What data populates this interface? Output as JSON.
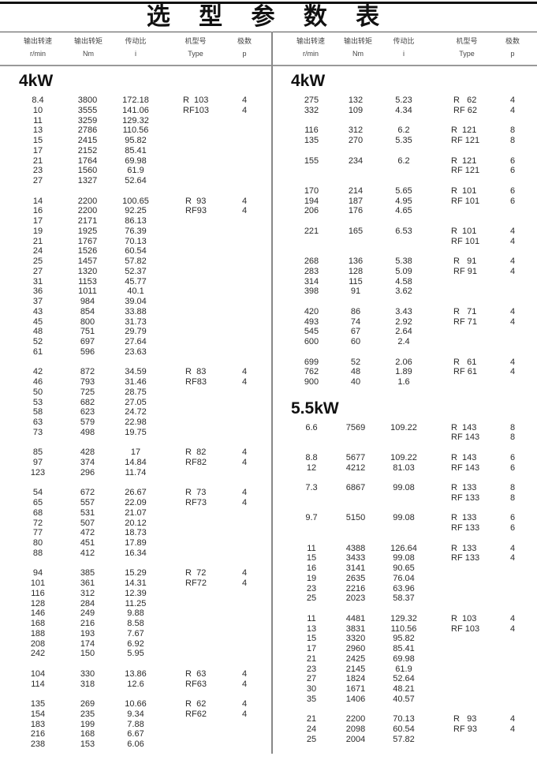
{
  "title": "选 型 参 数 表",
  "headers": [
    {
      "cn": "输出转速",
      "unit": "r/min"
    },
    {
      "cn": "输出转矩",
      "unit": "Nm"
    },
    {
      "cn": "传动比",
      "unit": "i"
    },
    {
      "cn": "机型号",
      "unit": "Type"
    },
    {
      "cn": "极数",
      "unit": "p"
    }
  ],
  "columns": [
    {
      "sections": [
        {
          "power": "4kW",
          "groups": [
            [
              [
                "8.4",
                "3800",
                "172.18",
                "R  103",
                "4"
              ],
              [
                "10",
                "3555",
                "141.06",
                "RF103",
                "4"
              ],
              [
                "11",
                "3259",
                "129.32",
                "",
                ""
              ],
              [
                "13",
                "2786",
                "110.56",
                "",
                ""
              ],
              [
                "15",
                "2415",
                "95.82",
                "",
                ""
              ],
              [
                "17",
                "2152",
                "85.41",
                "",
                ""
              ],
              [
                "21",
                "1764",
                "69.98",
                "",
                ""
              ],
              [
                "23",
                "1560",
                "61.9",
                "",
                ""
              ],
              [
                "27",
                "1327",
                "52.64",
                "",
                ""
              ]
            ],
            [
              [
                "14",
                "2200",
                "100.65",
                " R  93",
                "4"
              ],
              [
                "16",
                "2200",
                "92.25",
                " RF93",
                "4"
              ],
              [
                "17",
                "2171",
                "86.13",
                "",
                ""
              ],
              [
                "19",
                "1925",
                "76.39",
                "",
                ""
              ],
              [
                "21",
                "1767",
                "70.13",
                "",
                ""
              ],
              [
                "24",
                "1526",
                "60.54",
                "",
                ""
              ],
              [
                "25",
                "1457",
                "57.82",
                "",
                ""
              ],
              [
                "27",
                "1320",
                "52.37",
                "",
                ""
              ],
              [
                "31",
                "1153",
                "45.77",
                "",
                ""
              ],
              [
                "36",
                "1011",
                "40.1",
                "",
                ""
              ],
              [
                "37",
                "984",
                "39.04",
                "",
                ""
              ],
              [
                "43",
                "854",
                "33.88",
                "",
                ""
              ],
              [
                "45",
                "800",
                "31.73",
                "",
                ""
              ],
              [
                "48",
                "751",
                "29.79",
                "",
                ""
              ],
              [
                "52",
                "697",
                "27.64",
                "",
                ""
              ],
              [
                "61",
                "596",
                "23.63",
                "",
                ""
              ]
            ],
            [
              [
                "42",
                "872",
                "34.59",
                " R  83",
                "4"
              ],
              [
                "46",
                "793",
                "31.46",
                " RF83",
                "4"
              ],
              [
                "50",
                "725",
                "28.75",
                "",
                ""
              ],
              [
                "53",
                "682",
                "27.05",
                "",
                ""
              ],
              [
                "58",
                "623",
                "24.72",
                "",
                ""
              ],
              [
                "63",
                "579",
                "22.98",
                "",
                ""
              ],
              [
                "73",
                "498",
                "19.75",
                "",
                ""
              ]
            ],
            [
              [
                "85",
                "428",
                "17",
                " R  82",
                "4"
              ],
              [
                "97",
                "374",
                "14.84",
                " RF82",
                "4"
              ],
              [
                "123",
                "296",
                "11.74",
                "",
                ""
              ]
            ],
            [
              [
                "54",
                "672",
                "26.67",
                " R  73",
                "4"
              ],
              [
                "65",
                "557",
                "22.09",
                " RF73",
                "4"
              ],
              [
                "68",
                "531",
                "21.07",
                "",
                ""
              ],
              [
                "72",
                "507",
                "20.12",
                "",
                ""
              ],
              [
                "77",
                "472",
                "18.73",
                "",
                ""
              ],
              [
                "80",
                "451",
                "17.89",
                "",
                ""
              ],
              [
                "88",
                "412",
                "16.34",
                "",
                ""
              ]
            ],
            [
              [
                "94",
                "385",
                "15.29",
                " R  72",
                "4"
              ],
              [
                "101",
                "361",
                "14.31",
                " RF72",
                "4"
              ],
              [
                "116",
                "312",
                "12.39",
                "",
                ""
              ],
              [
                "128",
                "284",
                "11.25",
                "",
                ""
              ],
              [
                "146",
                "249",
                "9.88",
                "",
                ""
              ],
              [
                "168",
                "216",
                "8.58",
                "",
                ""
              ],
              [
                "188",
                "193",
                "7.67",
                "",
                ""
              ],
              [
                "208",
                "174",
                "6.92",
                "",
                ""
              ],
              [
                "242",
                "150",
                "5.95",
                "",
                ""
              ]
            ],
            [
              [
                "104",
                "330",
                "13.86",
                " R  63",
                "4"
              ],
              [
                "114",
                "318",
                "12.6",
                " RF63",
                "4"
              ]
            ],
            [
              [
                "135",
                "269",
                "10.66",
                " R  62",
                "4"
              ],
              [
                "154",
                "235",
                "9.34",
                " RF62",
                "4"
              ],
              [
                "183",
                "199",
                "7.88",
                "",
                ""
              ],
              [
                "216",
                "168",
                "6.67",
                "",
                ""
              ],
              [
                "238",
                "153",
                "6.06",
                "",
                ""
              ]
            ]
          ]
        }
      ]
    },
    {
      "sections": [
        {
          "power": "4kW",
          "groups": [
            [
              [
                "275",
                "132",
                "5.23",
                " R   62",
                "4"
              ],
              [
                "332",
                "109",
                "4.34",
                " RF 62",
                "4"
              ]
            ],
            [
              [
                "116",
                "312",
                "6.2",
                "R  121",
                "8"
              ],
              [
                "135",
                "270",
                "5.35",
                "RF 121",
                "8"
              ]
            ],
            [
              [
                "155",
                "234",
                "6.2",
                "R  121",
                "6"
              ],
              [
                "",
                "",
                "",
                "RF 121",
                "6"
              ]
            ],
            [
              [
                "170",
                "214",
                "5.65",
                "R  101",
                "6"
              ],
              [
                "194",
                "187",
                "4.95",
                "RF 101",
                "6"
              ],
              [
                "206",
                "176",
                "4.65",
                "",
                ""
              ]
            ],
            [
              [
                "221",
                "165",
                "6.53",
                "R  101",
                "4"
              ],
              [
                "",
                "",
                "",
                "RF 101",
                "4"
              ]
            ],
            [
              [
                "268",
                "136",
                "5.38",
                " R   91",
                "4"
              ],
              [
                "283",
                "128",
                "5.09",
                " RF 91",
                "4"
              ],
              [
                "314",
                "115",
                "4.58",
                "",
                ""
              ],
              [
                "398",
                "91",
                "3.62",
                "",
                ""
              ]
            ],
            [
              [
                "420",
                "86",
                "3.43",
                " R   71",
                "4"
              ],
              [
                "493",
                "74",
                "2.92",
                " RF 71",
                "4"
              ],
              [
                "545",
                "67",
                "2.64",
                "",
                ""
              ],
              [
                "600",
                "60",
                "2.4",
                "",
                ""
              ]
            ],
            [
              [
                "699",
                "52",
                "2.06",
                " R   61",
                "4"
              ],
              [
                "762",
                "48",
                "1.89",
                " RF 61",
                "4"
              ],
              [
                "900",
                "40",
                "1.6",
                "",
                ""
              ]
            ]
          ]
        },
        {
          "power": "5.5kW",
          "groups": [
            [
              [
                "6.6",
                "7569",
                "109.22",
                "R  143",
                "8"
              ],
              [
                "",
                "",
                "",
                "RF 143",
                "8"
              ]
            ],
            [
              [
                "8.8",
                "5677",
                "109.22",
                "R  143",
                "6"
              ],
              [
                "12",
                "4212",
                "81.03",
                "RF 143",
                "6"
              ]
            ],
            [
              [
                "7.3",
                "6867",
                "99.08",
                "R  133",
                "8"
              ],
              [
                "",
                "",
                "",
                "RF 133",
                "8"
              ]
            ],
            [
              [
                "9.7",
                "5150",
                "99.08",
                "R  133",
                "6"
              ],
              [
                "",
                "",
                "",
                "RF 133",
                "6"
              ]
            ],
            [
              [
                "11",
                "4388",
                "126.64",
                "R  133",
                "4"
              ],
              [
                "15",
                "3433",
                "99.08",
                "RF 133",
                "4"
              ],
              [
                "16",
                "3141",
                "90.65",
                "",
                ""
              ],
              [
                "19",
                "2635",
                "76.04",
                "",
                ""
              ],
              [
                "23",
                "2216",
                "63.96",
                "",
                ""
              ],
              [
                "25",
                "2023",
                "58.37",
                "",
                ""
              ]
            ],
            [
              [
                "11",
                "4481",
                "129.32",
                "R  103",
                "4"
              ],
              [
                "13",
                "3831",
                "110.56",
                "RF 103",
                "4"
              ],
              [
                "15",
                "3320",
                "95.82",
                "",
                ""
              ],
              [
                "17",
                "2960",
                "85.41",
                "",
                ""
              ],
              [
                "21",
                "2425",
                "69.98",
                "",
                ""
              ],
              [
                "23",
                "2145",
                "61.9",
                "",
                ""
              ],
              [
                "27",
                "1824",
                "52.64",
                "",
                ""
              ],
              [
                "30",
                "1671",
                "48.21",
                "",
                ""
              ],
              [
                "35",
                "1406",
                "40.57",
                "",
                ""
              ]
            ],
            [
              [
                "21",
                "2200",
                "70.13",
                " R   93",
                "4"
              ],
              [
                "24",
                "2098",
                "60.54",
                " RF 93",
                "4"
              ],
              [
                "25",
                "2004",
                "57.82",
                "",
                ""
              ]
            ]
          ]
        }
      ]
    }
  ]
}
